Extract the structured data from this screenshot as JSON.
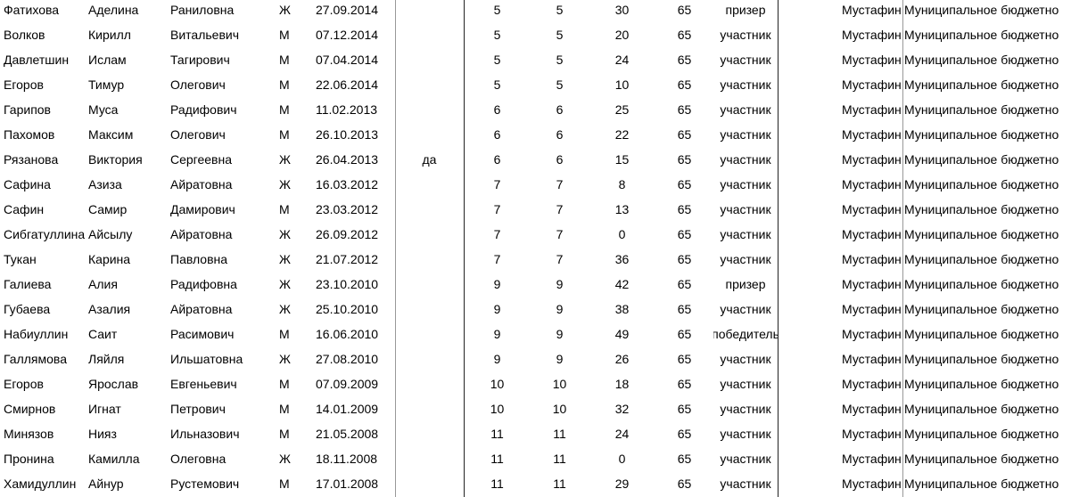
{
  "table": {
    "rows": [
      [
        "Фатихова",
        "Аделина",
        "Раниловна",
        "Ж",
        "27.09.2014",
        null,
        5,
        5,
        30,
        65,
        "призер",
        "Мустафин",
        "Муниципальное бюджетно"
      ],
      [
        "Волков",
        "Кирилл",
        "Витальевич",
        "М",
        "07.12.2014",
        null,
        5,
        5,
        20,
        65,
        "участник",
        "Мустафин",
        "Муниципальное бюджетно"
      ],
      [
        "Давлетшин",
        "Ислам",
        "Тагирович",
        "М",
        "07.04.2014",
        null,
        5,
        5,
        24,
        65,
        "участник",
        "Мустафин",
        "Муниципальное бюджетно"
      ],
      [
        "Егоров",
        "Тимур",
        "Олегович",
        "М",
        "22.06.2014",
        null,
        5,
        5,
        10,
        65,
        "участник",
        "Мустафин",
        "Муниципальное бюджетно"
      ],
      [
        "Гарипов",
        "Муса",
        "Радифович",
        "М",
        "11.02.2013",
        null,
        6,
        6,
        25,
        65,
        "участник",
        "Мустафин",
        "Муниципальное бюджетно"
      ],
      [
        "Пахомов",
        "Максим",
        "Олегович",
        "М",
        "26.10.2013",
        null,
        6,
        6,
        22,
        65,
        "участник",
        "Мустафин",
        "Муниципальное бюджетно"
      ],
      [
        "Рязанова",
        "Виктория",
        "Сергеевна",
        "Ж",
        "26.04.2013",
        "да",
        6,
        6,
        15,
        65,
        "участник",
        "Мустафин",
        "Муниципальное бюджетно"
      ],
      [
        "Сафина",
        "Азиза",
        "Айратовна",
        "Ж",
        "16.03.2012",
        null,
        7,
        7,
        8,
        65,
        "участник",
        "Мустафин",
        "Муниципальное бюджетно"
      ],
      [
        "Сафин",
        "Самир",
        "Дамирович",
        "М",
        "23.03.2012",
        null,
        7,
        7,
        13,
        65,
        "участник",
        "Мустафин",
        "Муниципальное бюджетно"
      ],
      [
        "Сибгатуллина",
        "Айсылу",
        "Айратовна",
        "Ж",
        "26.09.2012",
        null,
        7,
        7,
        0,
        65,
        "участник",
        "Мустафин",
        "Муниципальное бюджетно"
      ],
      [
        "Тукан",
        "Карина",
        "Павловна",
        "Ж",
        "21.07.2012",
        null,
        7,
        7,
        36,
        65,
        "участник",
        "Мустафин",
        "Муниципальное бюджетно"
      ],
      [
        "Галиева",
        "Алия",
        "Радифовна",
        "Ж",
        "23.10.2010",
        null,
        9,
        9,
        42,
        65,
        "призер",
        "Мустафин",
        "Муниципальное бюджетно"
      ],
      [
        "Губаева",
        "Азалия",
        "Айратовна",
        "Ж",
        "25.10.2010",
        null,
        9,
        9,
        38,
        65,
        "участник",
        "Мустафин",
        "Муниципальное бюджетно"
      ],
      [
        "Набиуллин",
        "Саит",
        "Расимович",
        "М",
        "16.06.2010",
        null,
        9,
        9,
        49,
        65,
        "победитель",
        "Мустафин",
        "Муниципальное бюджетно"
      ],
      [
        "Галлямова",
        "Ляйля",
        "Ильшатовна",
        "Ж",
        "27.08.2010",
        null,
        9,
        9,
        26,
        65,
        "участник",
        "Мустафин",
        "Муниципальное бюджетно"
      ],
      [
        "Егоров",
        "Ярослав",
        "Евгеньевич",
        "М",
        "07.09.2009",
        null,
        10,
        10,
        18,
        65,
        "участник",
        "Мустафин",
        "Муниципальное бюджетно"
      ],
      [
        "Смирнов",
        "Игнат",
        "Петрович",
        "М",
        "14.01.2009",
        null,
        10,
        10,
        32,
        65,
        "участник",
        "Мустафин",
        "Муниципальное бюджетно"
      ],
      [
        "Минязов",
        "Нияз",
        "Ильназович",
        "М",
        "21.05.2008",
        null,
        11,
        11,
        24,
        65,
        "участник",
        "Мустафин",
        "Муниципальное бюджетно"
      ],
      [
        "Пронина",
        "Камилла",
        "Олеговна",
        "Ж",
        "18.11.2008",
        null,
        11,
        11,
        0,
        65,
        "участник",
        "Мустафин",
        "Муниципальное бюджетно"
      ],
      [
        "Хамидуллин",
        "Айнур",
        "Рустемович",
        "М",
        "17.01.2008",
        null,
        11,
        11,
        29,
        65,
        "участник",
        "Мустафин",
        "Муниципальное бюджетно"
      ]
    ]
  }
}
